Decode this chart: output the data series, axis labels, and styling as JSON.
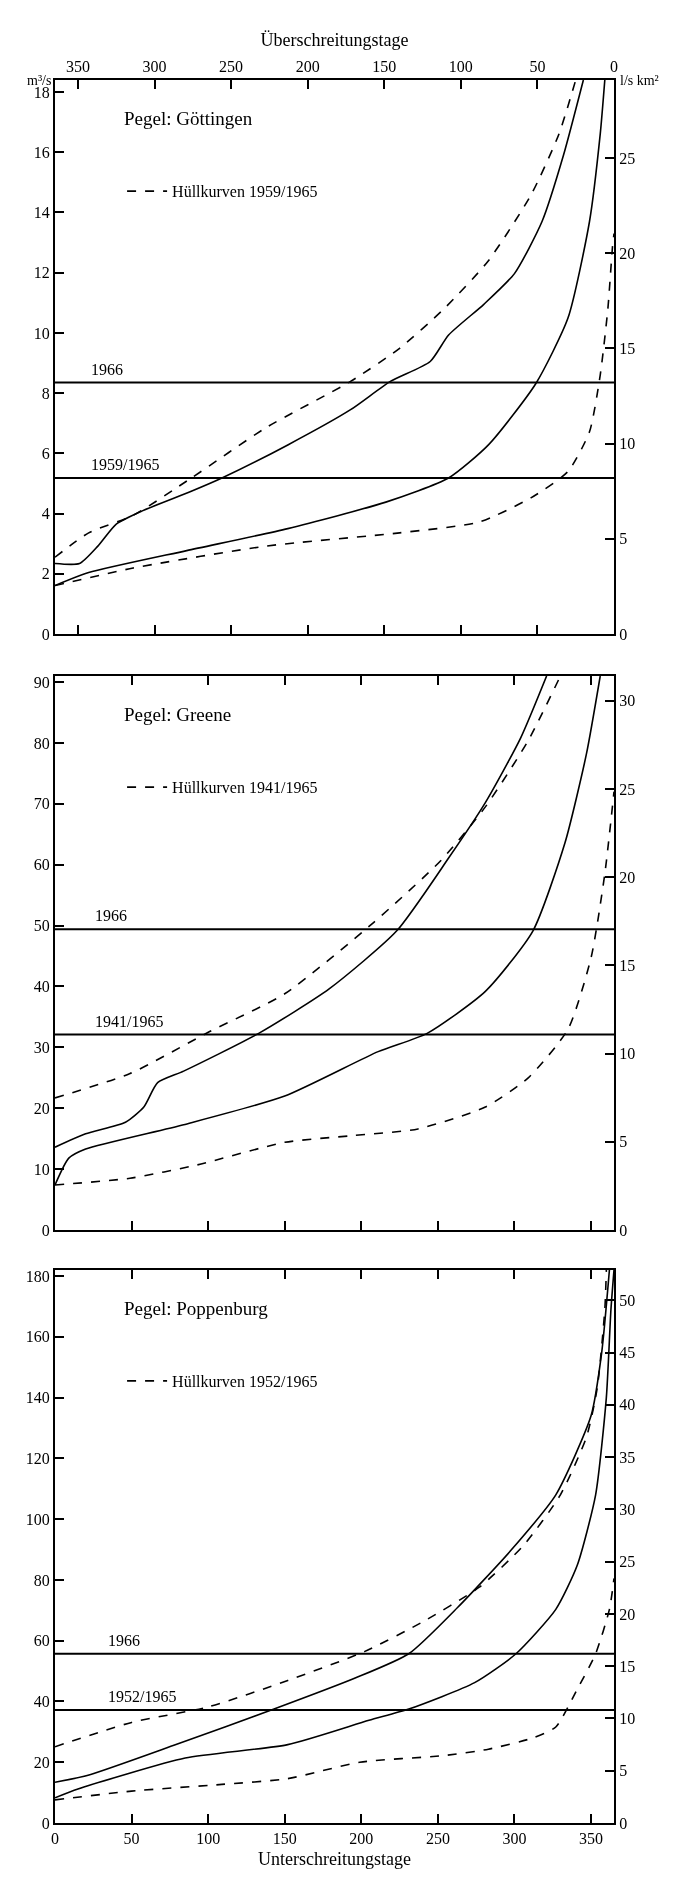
{
  "chart_data": [
    {
      "type": "line",
      "title": "Pegel: Göttingen",
      "xlabel": "Überschreitungstage",
      "ylabel": "m³/s",
      "y2label": "l/s km²",
      "legend": "top left",
      "xlim": [
        365,
        0
      ],
      "xticks": [
        350,
        300,
        250,
        200,
        150,
        100,
        50,
        0
      ],
      "ylim": [
        0,
        18.4
      ],
      "yticks": [
        0,
        2,
        4,
        6,
        8,
        10,
        12,
        14,
        16,
        18
      ],
      "y2lim": [
        0,
        29.1
      ],
      "y2ticks": [
        0,
        5,
        10,
        15,
        20,
        25
      ],
      "ref_lines": [
        {
          "axis": "y",
          "value": 8.35
        },
        {
          "axis": "y",
          "value": 5.18
        }
      ],
      "annotations": [
        {
          "text": "1966",
          "x": 343,
          "y": 8.35
        },
        {
          "text": "1959/1965",
          "x": 343,
          "y": 5.18
        }
      ],
      "series": [
        {
          "name": "Hüllkurven 1959/1965",
          "color": "#000000",
          "line_style": "dashed",
          "x": [
            365,
            343,
            314,
            276,
            227,
            172,
            140,
            111,
            82,
            54,
            36,
            25
          ],
          "values": [
            2.55,
            3.36,
            3.94,
            5.18,
            6.86,
            8.39,
            9.49,
            10.8,
            12.4,
            14.6,
            16.6,
            18.4
          ]
        },
        {
          "color": "#000000",
          "line_style": "solid",
          "x": [
            365,
            349,
            337,
            325,
            308,
            276,
            256,
            213,
            172,
            146,
            120,
            108,
            85,
            65,
            47,
            33,
            20
          ],
          "values": [
            2.34,
            2.34,
            2.92,
            3.65,
            4.09,
            4.74,
            5.18,
            6.28,
            7.45,
            8.39,
            9.05,
            9.93,
            10.95,
            11.97,
            13.7,
            15.9,
            18.4
          ]
        },
        {
          "color": "#000000",
          "line_style": "solid",
          "x": [
            365,
            343,
            279,
            213,
            149,
            108,
            82,
            51,
            30,
            16,
            9,
            6
          ],
          "values": [
            1.61,
            2.04,
            2.77,
            3.5,
            4.38,
            5.18,
            6.28,
            8.32,
            10.5,
            13.7,
            16.6,
            18.4
          ]
        },
        {
          "color": "#000000",
          "line_style": "dashed",
          "x": [
            365,
            314,
            227,
            140,
            88,
            54,
            30,
            16,
            9,
            4,
            1,
            0
          ],
          "values": [
            1.61,
            2.19,
            2.92,
            3.36,
            3.72,
            4.53,
            5.4,
            6.72,
            8.6,
            10.8,
            12.85,
            13.3
          ]
        }
      ]
    },
    {
      "type": "line",
      "title": "Pegel: Greene",
      "legend": "top left",
      "tick_labels": "y",
      "xlim": [
        0,
        365
      ],
      "xticks": [
        0,
        50,
        100,
        150,
        200,
        250,
        300,
        350
      ],
      "ylim": [
        0,
        91
      ],
      "yticks": [
        0,
        10,
        20,
        30,
        40,
        50,
        60,
        70,
        80,
        90
      ],
      "y2lim": [
        0,
        31.4
      ],
      "y2ticks": [
        0,
        5,
        10,
        15,
        20,
        25,
        30
      ],
      "ref_lines": [
        {
          "axis": "y",
          "value": 49.4
        },
        {
          "axis": "y",
          "value": 32.1
        }
      ],
      "annotations": [
        {
          "text": "1966",
          "x": 25,
          "y": 49.4
        },
        {
          "text": "1941/1965",
          "x": 25,
          "y": 32.1
        }
      ],
      "series": [
        {
          "name": "Hüllkurven 1941/1965",
          "color": "#000000",
          "line_style": "dashed",
          "x": [
            0,
            49,
            101,
            150,
            208,
            252,
            281,
            309,
            330
          ],
          "values": [
            21.7,
            25.7,
            32.6,
            38.8,
            50.5,
            60.7,
            69.5,
            80.4,
            91
          ]
        },
        {
          "color": "#000000",
          "line_style": "solid",
          "x": [
            0,
            20,
            46,
            58,
            67,
            84,
            133,
            179,
            223,
            257,
            281,
            304,
            321
          ],
          "values": [
            13.6,
            15.8,
            17.7,
            20.2,
            24.2,
            26.1,
            32.3,
            39.6,
            49.1,
            61.1,
            70.2,
            80.8,
            91
          ]
        },
        {
          "color": "#000000",
          "line_style": "solid",
          "x": [
            0,
            9,
            20,
            84,
            150,
            211,
            243,
            281,
            312,
            333,
            347,
            356
          ],
          "values": [
            7.4,
            11.8,
            13.3,
            17.3,
            22,
            29.3,
            32.3,
            39.2,
            49.1,
            63.6,
            78.2,
            91
          ]
        },
        {
          "color": "#000000",
          "line_style": "dashed",
          "x": [
            0,
            49,
            93,
            150,
            194,
            237,
            281,
            309,
            335,
            350,
            359,
            365
          ],
          "values": [
            7.4,
            8.5,
            10.7,
            14.4,
            15.5,
            16.6,
            20.2,
            25,
            33,
            44.7,
            58.5,
            72
          ]
        }
      ]
    },
    {
      "type": "line",
      "title": "Pegel: Poppenburg",
      "xlabel": "Unterschreitungstage",
      "legend": "top left",
      "xlim": [
        0,
        365
      ],
      "xticks": [
        0,
        50,
        100,
        150,
        200,
        250,
        300,
        350
      ],
      "ylim": [
        0,
        182
      ],
      "yticks": [
        0,
        20,
        40,
        60,
        80,
        100,
        120,
        140,
        160,
        180
      ],
      "y2lim": [
        0,
        52.9
      ],
      "y2ticks": [
        0,
        5,
        10,
        15,
        20,
        25,
        30,
        35,
        40,
        45,
        50
      ],
      "ref_lines": [
        {
          "axis": "y",
          "value": 55.7
        },
        {
          "axis": "y",
          "value": 37.2
        }
      ],
      "annotations": [
        {
          "text": "1966",
          "x": 33,
          "y": 55.7
        },
        {
          "text": "1952/1965",
          "x": 33,
          "y": 37.2
        }
      ],
      "series": [
        {
          "name": "Hüllkurven 1952/1965",
          "color": "#000000",
          "line_style": "dashed",
          "x": [
            0,
            50,
            100,
            152,
            202,
            239,
            277,
            306,
            330,
            347,
            354,
            359,
            360
          ],
          "values": [
            25.1,
            33.1,
            38.2,
            46.9,
            56.4,
            65.9,
            77.6,
            91.4,
            108,
            127,
            143,
            169,
            182
          ]
        },
        {
          "color": "#000000",
          "line_style": "solid",
          "x": [
            0,
            21,
            79,
            143,
            196,
            231,
            263,
            298,
            327,
            350,
            357,
            362
          ],
          "values": [
            13.4,
            15.6,
            25.8,
            37.5,
            47.7,
            55.7,
            71,
            89.9,
            108,
            134,
            155,
            182
          ]
        },
        {
          "color": "#000000",
          "line_style": "solid",
          "x": [
            0,
            15,
            85,
            152,
            205,
            231,
            274,
            301,
            327,
            341,
            353,
            360,
            363,
            365
          ],
          "values": [
            8.3,
            11.2,
            21.4,
            25.8,
            33.8,
            37.5,
            46.2,
            55.7,
            70.3,
            84.8,
            108,
            140,
            169,
            182
          ]
        },
        {
          "color": "#000000",
          "line_style": "dashed",
          "x": [
            0,
            50,
            109,
            152,
            199,
            254,
            283,
            312,
            327,
            341,
            353,
            362,
            365
          ],
          "values": [
            7.6,
            10.5,
            12.7,
            14.6,
            20,
            22.2,
            24.3,
            28,
            31.6,
            44,
            55.7,
            70.3,
            80.5
          ]
        }
      ]
    }
  ]
}
